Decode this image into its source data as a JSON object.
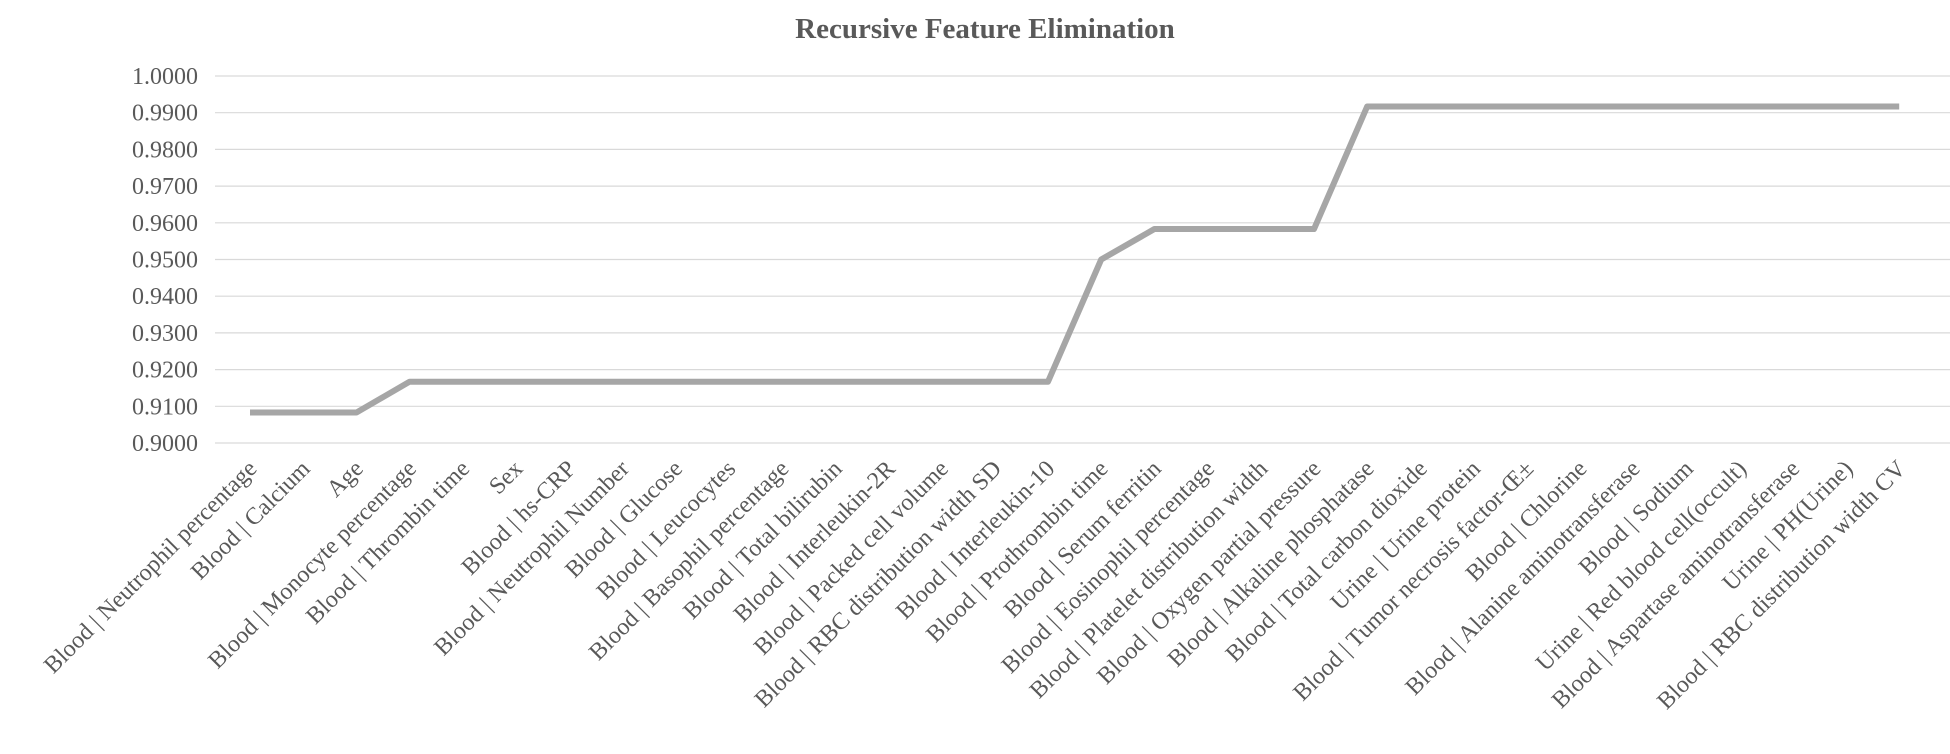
{
  "chart_data": {
    "type": "line",
    "title": "Recursive Feature Elimination",
    "xlabel": "",
    "ylabel": "",
    "ylim": [
      0.9,
      1.0
    ],
    "ytick_step": 0.01,
    "ytick_labels": [
      "0.9000",
      "0.9100",
      "0.9200",
      "0.9300",
      "0.9400",
      "0.9500",
      "0.9600",
      "0.9700",
      "0.9800",
      "0.9900",
      "1.0000"
    ],
    "grid": true,
    "legend": "none",
    "categories": [
      "Blood | Neutrophil percentage",
      "Blood | Calcium",
      "Age",
      "Blood | Monocyte percentage",
      "Blood | Thrombin time",
      "Sex",
      "Blood | hs-CRP",
      "Blood | Neutrophil Number",
      "Blood | Glucose",
      "Blood | Leucocytes",
      "Blood | Basophil percentage",
      "Blood | Total bilirubin",
      "Blood | Interleukin-2R",
      "Blood | Packed cell volume",
      "Blood | RBC distribution width SD",
      "Blood | Interleukin-10",
      "Blood | Prothrombin time",
      "Blood | Serum ferritin",
      "Blood | Eosinophil percentage",
      "Blood | Platelet distribution width",
      "Blood | Oxygen partial pressure",
      "Blood | Alkaline phosphatase",
      "Blood | Total carbon dioxide",
      "Urine | Urine protein",
      "Blood | Tumor necrosis factor-Œ±",
      "Blood | Chlorine",
      "Blood | Alanine aminotransferase",
      "Blood | Sodium",
      "Urine | Red blood cell(occult)",
      "Blood | Aspartase aminotransferase",
      "Urine | PH(Urine)",
      "Blood | RBC distribution width CV"
    ],
    "series": [
      {
        "values": [
          0.9083,
          0.9083,
          0.9083,
          0.9167,
          0.9167,
          0.9167,
          0.9167,
          0.9167,
          0.9167,
          0.9167,
          0.9167,
          0.9167,
          0.9167,
          0.9167,
          0.9167,
          0.9167,
          0.95,
          0.9583,
          0.9583,
          0.9583,
          0.9583,
          0.9917,
          0.9917,
          0.9917,
          0.9917,
          0.9917,
          0.9917,
          0.9917,
          0.9917,
          0.9917,
          0.9917,
          0.9917
        ]
      }
    ],
    "colors": {
      "series": "#a6a6a6",
      "grid": "#d9d9d9",
      "text": "#595959"
    }
  }
}
